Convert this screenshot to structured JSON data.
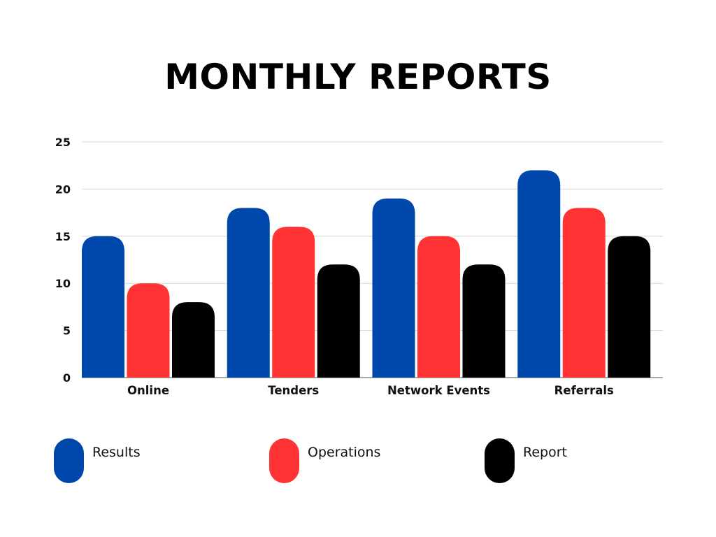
{
  "chart_data": {
    "type": "bar",
    "title": "MONTHLY REPORTS",
    "categories": [
      "Online",
      "Tenders",
      "Network Events",
      "Referrals"
    ],
    "series": [
      {
        "name": "Results",
        "color": "#0047AB",
        "values": [
          15,
          18,
          19,
          22
        ]
      },
      {
        "name": "Operations",
        "color": "#FF3333",
        "values": [
          10,
          16,
          15,
          18
        ]
      },
      {
        "name": "Report",
        "color": "#000000",
        "values": [
          8,
          12,
          12,
          15
        ]
      }
    ],
    "y_ticks": [
      "0",
      "5",
      "10",
      "15",
      "20",
      "25"
    ],
    "ylim": [
      0,
      25
    ],
    "grid": true,
    "legend_position": "bottom"
  }
}
